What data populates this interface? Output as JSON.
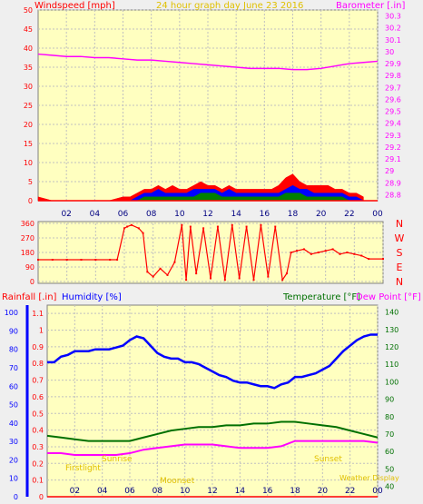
{
  "header": {
    "left_label": "Windspeed [mph]",
    "title": "24 hour graph day   June 23 2016",
    "right_label": "Barometer [.in]"
  },
  "colors": {
    "plot_bg": "#ffffc0",
    "windspeed": "#ff0000",
    "gust": "#ff0000",
    "wind_blue": "#0000ff",
    "wind_green": "#008000",
    "barometer": "#ff00ff",
    "direction": "#ff0000",
    "humidity": "#0000ff",
    "temperature": "#007000",
    "dewpoint": "#ff00ff",
    "rainfall": "#ff0000",
    "sun_labels": "#e0c000"
  },
  "compass": [
    "N",
    "W",
    "S",
    "E",
    "N"
  ],
  "bottom_labels": {
    "rainfall": "Rainfall [.in]",
    "humidity": "Humidity [%]",
    "temperature": "Temperature [°F]",
    "dewpoint": "Dew Point [°F]"
  },
  "sun": {
    "first_light": "Firstlight",
    "sunrise": "Sunrise",
    "sunset": "Sunset",
    "last_light": "Lastlight",
    "moon": "Moonset",
    "credit": "Weather Display"
  },
  "chart_data": [
    {
      "type": "line",
      "name": "wind-barometer",
      "x_ticks": [
        "02",
        "04",
        "06",
        "08",
        "10",
        "12",
        "14",
        "16",
        "18",
        "20",
        "22",
        "00"
      ],
      "xlim": [
        0,
        24
      ],
      "left_axis": {
        "ticks": [
          "0",
          "5",
          "10",
          "15",
          "20",
          "25",
          "30",
          "35",
          "40",
          "45",
          "50"
        ],
        "ylim": [
          0,
          50
        ]
      },
      "right_axis": {
        "ticks": [
          "28.8",
          "28.9",
          "29",
          "29.1",
          "29.2",
          "29.3",
          "29.4",
          "29.5",
          "29.6",
          "29.7",
          "29.8",
          "29.9",
          "30",
          "30.1",
          "30.2",
          "30.3"
        ],
        "ylim": [
          28.75,
          30.35
        ]
      },
      "barometer": {
        "x": [
          0,
          1,
          2,
          3,
          4,
          5,
          6,
          7,
          8,
          9,
          10,
          11,
          12,
          13,
          14,
          15,
          16,
          17,
          18,
          19,
          20,
          21,
          22,
          23,
          24
        ],
        "y": [
          29.98,
          29.97,
          29.96,
          29.96,
          29.95,
          29.95,
          29.94,
          29.93,
          29.93,
          29.92,
          29.91,
          29.9,
          29.89,
          29.88,
          29.87,
          29.86,
          29.86,
          29.86,
          29.85,
          29.85,
          29.86,
          29.88,
          29.9,
          29.91,
          29.92
        ]
      },
      "windspeed_envelope": {
        "x": [
          0,
          1,
          2,
          3,
          4,
          5,
          6,
          6.5,
          7,
          7.5,
          8,
          8.5,
          9,
          9.5,
          10,
          10.5,
          11,
          11.5,
          12,
          12.5,
          13,
          13.5,
          14,
          14.5,
          15,
          15.5,
          16,
          16.5,
          17,
          17.5,
          18,
          18.5,
          19,
          19.5,
          20,
          20.5,
          21,
          21.5,
          22,
          22.5,
          23
        ],
        "gust": [
          1,
          0,
          0,
          0,
          0,
          0,
          1,
          1,
          2,
          3,
          3,
          4,
          3,
          4,
          3,
          3,
          4,
          5,
          4,
          4,
          3,
          4,
          3,
          3,
          3,
          3,
          3,
          3,
          4,
          6,
          7,
          5,
          4,
          4,
          4,
          4,
          3,
          3,
          2,
          2,
          1
        ],
        "average": [
          0,
          0,
          0,
          0,
          0,
          0,
          0,
          0,
          1,
          2,
          2,
          3,
          2,
          2,
          2,
          2,
          3,
          3,
          3,
          3,
          2,
          3,
          2,
          2,
          2,
          2,
          2,
          2,
          2,
          3,
          4,
          3,
          3,
          2,
          2,
          2,
          2,
          2,
          1,
          1,
          0
        ],
        "low": [
          0,
          0,
          0,
          0,
          0,
          0,
          0,
          0,
          0,
          1,
          1,
          1,
          1,
          1,
          1,
          1,
          1,
          2,
          2,
          2,
          1,
          1,
          1,
          1,
          1,
          1,
          1,
          1,
          1,
          2,
          2,
          2,
          1,
          1,
          1,
          1,
          1,
          1,
          0,
          0,
          0
        ]
      }
    },
    {
      "type": "scatter",
      "name": "wind-direction",
      "y_ticks": [
        "360",
        "270",
        "180",
        "90",
        "0"
      ],
      "ylim": [
        0,
        360
      ],
      "x": [
        0,
        1,
        2,
        3,
        4,
        5,
        5.5,
        6,
        6.2,
        6.5,
        7,
        7.3,
        7.6,
        8,
        8.5,
        9,
        9.5,
        10,
        10.3,
        10.6,
        11,
        11.5,
        12,
        12.5,
        13,
        13.5,
        14,
        14.5,
        15,
        15.5,
        16,
        16.5,
        17,
        17.3,
        17.6,
        18,
        18.5,
        19,
        19.5,
        20,
        20.5,
        21,
        21.5,
        22,
        22.5,
        23,
        24
      ],
      "y": [
        135,
        135,
        135,
        135,
        135,
        135,
        135,
        330,
        340,
        350,
        330,
        300,
        60,
        30,
        80,
        40,
        120,
        350,
        10,
        340,
        50,
        330,
        20,
        340,
        10,
        350,
        20,
        340,
        10,
        350,
        30,
        340,
        10,
        50,
        180,
        190,
        200,
        170,
        180,
        190,
        200,
        170,
        180,
        170,
        160,
        140,
        140
      ]
    },
    {
      "type": "line",
      "name": "humidity-temperature",
      "x_ticks": [
        "02",
        "04",
        "06",
        "08",
        "10",
        "12",
        "14",
        "16",
        "18",
        "20",
        "22",
        "00"
      ],
      "xlim": [
        0,
        24
      ],
      "rainfall_axis": {
        "ticks": [
          "0",
          "0.1",
          "0.2",
          "0.3",
          "0.4",
          "0.5",
          "0.6",
          "0.7",
          "0.8",
          "0.9",
          "1",
          "1.1"
        ],
        "ylim": [
          0,
          1.15
        ]
      },
      "humidity_axis": {
        "ticks": [
          "0",
          "10",
          "20",
          "30",
          "40",
          "50",
          "60",
          "70",
          "80",
          "90",
          "100"
        ],
        "ylim": [
          0,
          104
        ]
      },
      "temperature_axis": {
        "ticks": [
          "40",
          "50",
          "60",
          "70",
          "80",
          "90",
          "100",
          "110",
          "120",
          "130",
          "140"
        ],
        "ylim": [
          34,
          144
        ]
      },
      "humidity": {
        "x": [
          0,
          0.5,
          1,
          1.5,
          2,
          2.5,
          3,
          3.5,
          4,
          4.5,
          5,
          5.5,
          6,
          6.5,
          7,
          7.5,
          8,
          8.5,
          9,
          9.5,
          10,
          10.5,
          11,
          11.5,
          12,
          12.5,
          13,
          13.5,
          14,
          14.5,
          15,
          15.5,
          16,
          16.5,
          17,
          17.5,
          18,
          18.5,
          19,
          19.5,
          20,
          20.5,
          21,
          21.5,
          22,
          22.5,
          23,
          23.5,
          24
        ],
        "y": [
          73,
          73,
          76,
          77,
          79,
          79,
          79,
          80,
          80,
          80,
          81,
          82,
          85,
          87,
          86,
          82,
          78,
          76,
          75,
          75,
          73,
          73,
          72,
          70,
          68,
          66,
          65,
          63,
          62,
          62,
          61,
          60,
          60,
          59,
          61,
          62,
          65,
          65,
          66,
          67,
          69,
          71,
          75,
          79,
          82,
          85,
          87,
          88,
          88
        ]
      },
      "temperature": {
        "x": [
          0,
          1,
          2,
          3,
          4,
          5,
          6,
          7,
          8,
          9,
          10,
          11,
          12,
          13,
          14,
          15,
          16,
          17,
          18,
          19,
          20,
          21,
          22,
          23,
          24
        ],
        "y": [
          69,
          68,
          67,
          66,
          66,
          66,
          66,
          68,
          70,
          72,
          73,
          74,
          74,
          75,
          75,
          76,
          76,
          77,
          77,
          76,
          75,
          74,
          72,
          70,
          68
        ]
      },
      "dewpoint": {
        "x": [
          0,
          1,
          2,
          3,
          4,
          5,
          6,
          7,
          8,
          9,
          10,
          11,
          12,
          13,
          14,
          15,
          16,
          17,
          18,
          19,
          20,
          21,
          22,
          23,
          24
        ],
        "y": [
          59,
          59,
          58,
          58,
          58,
          58,
          59,
          61,
          62,
          63,
          64,
          64,
          64,
          63,
          62,
          62,
          62,
          63,
          66,
          66,
          66,
          66,
          66,
          66,
          65
        ]
      },
      "rainfall": {
        "x": [
          0,
          24
        ],
        "y": [
          0,
          0
        ]
      }
    }
  ]
}
